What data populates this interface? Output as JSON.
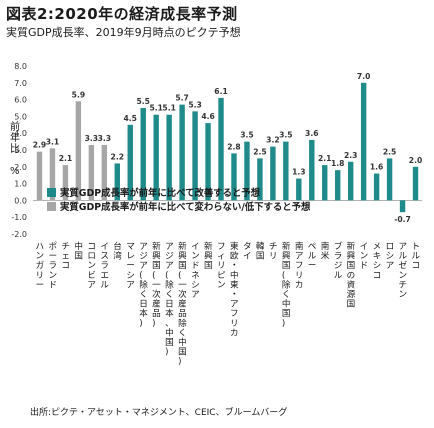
{
  "header": {
    "title": "図表2:2020年の経済成長率予測",
    "subtitle": "実質GDP成長率、2019年9月時点のピクテ予想"
  },
  "footer": {
    "source": "出所:ピクテ・アセット・マネジメント、CEIC、ブルームバーグ"
  },
  "colors": {
    "improve": "#1f8a8a",
    "same_or_lower": "#a6a6a6"
  },
  "chart_data": {
    "type": "bar",
    "ylabel": "前年比 %",
    "ylim": [
      -2.0,
      8.0
    ],
    "yticks": [
      "8.0",
      "7.0",
      "6.0",
      "5.0",
      "4.0",
      "3.0",
      "2.0",
      "1.0",
      "0.0",
      "-1.0",
      "-2.0"
    ],
    "grid": false,
    "legend_position": "bottom-center, overlaid on plot area",
    "series": [
      {
        "name": "実質GDP成長率が前年に比べて改善すると予想",
        "color": "#1f8a8a"
      },
      {
        "name": "実質GDP成長率が前年に比べて変わらない/低下すると予想",
        "color": "#a6a6a6"
      }
    ],
    "categories": [
      "ハンガリー",
      "ポーランド",
      "チェコ",
      "中国",
      "コロンビア",
      "イスラエル",
      "台湾",
      "マレーシア",
      "アジア(除く日本)",
      "新興国(一次産品)",
      "アジア(除く日本、中国)",
      "新興国(一次産品除く中国)",
      "インドネシア",
      "新興国",
      "フィリピン",
      "東欧・中東・アフリカ",
      "タイ",
      "韓国",
      "チリ",
      "新興国(除く中国)",
      "南アフリカ",
      "ペルー",
      "南米",
      "ブラジル",
      "新興国の資源国",
      "インド",
      "メキシコ",
      "ロシア",
      "アルゼンチン",
      "トルコ"
    ],
    "values": [
      2.9,
      3.1,
      2.1,
      5.9,
      3.3,
      3.3,
      2.2,
      4.5,
      5.5,
      5.1,
      5.1,
      5.7,
      5.3,
      4.6,
      6.1,
      2.8,
      3.5,
      2.5,
      3.2,
      3.5,
      1.3,
      3.6,
      2.1,
      1.8,
      2.3,
      7.0,
      1.6,
      2.5,
      -0.7,
      2.0
    ],
    "data_labels": [
      "2.9",
      "3.1",
      "2.1",
      "5.9",
      "3.3",
      "3.3",
      "2.2",
      "4.5",
      "5.5",
      "5.1",
      "5.1",
      "5.7",
      "5.3",
      "4.6",
      "6.1",
      "2.8",
      "3.5",
      "2.5",
      "3.2",
      "3.5",
      "1.3",
      "3.6",
      "2.1",
      "1.8",
      "2.3",
      "7.0",
      "1.6",
      "2.5",
      "-0.7",
      "2.0"
    ],
    "series_index": [
      1,
      1,
      1,
      1,
      1,
      1,
      0,
      0,
      0,
      0,
      0,
      0,
      0,
      0,
      0,
      0,
      0,
      0,
      0,
      0,
      0,
      0,
      0,
      0,
      0,
      0,
      0,
      0,
      0,
      0
    ]
  }
}
